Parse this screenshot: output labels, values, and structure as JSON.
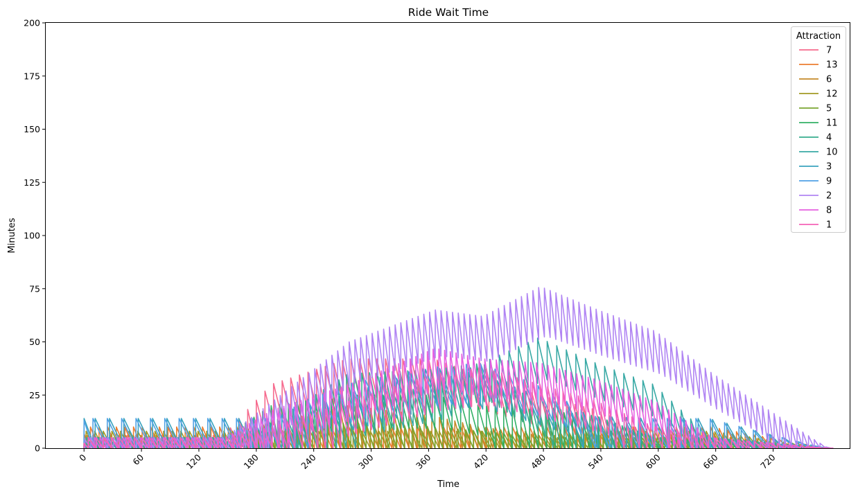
{
  "chart_data": {
    "type": "line",
    "title": "Ride Wait Time",
    "xlabel": "Time",
    "ylabel": "Minutes",
    "xlim": [
      -40,
      800
    ],
    "ylim": [
      0,
      200
    ],
    "x_ticks": [
      0,
      60,
      120,
      180,
      240,
      300,
      360,
      420,
      480,
      540,
      600,
      660,
      720
    ],
    "x_tick_labels": [
      "0",
      "60",
      "120",
      "180",
      "240",
      "300",
      "360",
      "420",
      "480",
      "540",
      "600",
      "660",
      "720"
    ],
    "y_ticks": [
      0,
      25,
      50,
      75,
      100,
      125,
      150,
      175,
      200
    ],
    "y_tick_labels": [
      "0",
      "25",
      "50",
      "75",
      "100",
      "125",
      "150",
      "175",
      "200"
    ],
    "x_tick_rotation": 45,
    "grid": false,
    "legend": {
      "title": "Attraction",
      "placement": "upper-right"
    },
    "series": [
      {
        "name": "7",
        "color": "#f66a8d",
        "period": 9,
        "peak_minutes": [
          0,
          6,
          6,
          30,
          42,
          42,
          34,
          25,
          18,
          6,
          6,
          0
        ]
      },
      {
        "name": "13",
        "color": "#ec7d30",
        "period": 9,
        "peak_minutes": [
          0,
          10,
          10,
          10,
          10,
          10,
          10,
          10,
          10,
          10,
          10,
          0
        ]
      },
      {
        "name": "6",
        "color": "#c48a28",
        "period": 8,
        "peak_minutes": [
          0,
          6,
          6,
          12,
          20,
          15,
          10,
          6,
          6,
          6,
          6,
          0
        ]
      },
      {
        "name": "12",
        "color": "#a39a24",
        "period": 9,
        "peak_minutes": [
          0,
          8,
          8,
          8,
          8,
          8,
          8,
          8,
          8,
          8,
          8,
          0
        ]
      },
      {
        "name": "5",
        "color": "#79a530",
        "period": 8,
        "peak_minutes": [
          0,
          5,
          5,
          8,
          12,
          10,
          8,
          5,
          5,
          5,
          5,
          0
        ]
      },
      {
        "name": "11",
        "color": "#32b065",
        "period": 9,
        "peak_minutes": [
          0,
          5,
          5,
          20,
          25,
          25,
          20,
          18,
          15,
          5,
          5,
          0
        ]
      },
      {
        "name": "4",
        "color": "#36ad8d",
        "period": 8,
        "peak_minutes": [
          0,
          5,
          5,
          12,
          35,
          37,
          40,
          20,
          15,
          5,
          5,
          0
        ]
      },
      {
        "name": "10",
        "color": "#38a9a5",
        "period": 10,
        "peak_minutes": [
          0,
          5,
          5,
          10,
          20,
          30,
          40,
          52,
          40,
          30,
          5,
          0
        ]
      },
      {
        "name": "3",
        "color": "#39a3be",
        "period": 15,
        "peak_minutes": [
          0,
          14,
          14,
          14,
          25,
          38,
          35,
          25,
          15,
          14,
          14,
          0
        ]
      },
      {
        "name": "9",
        "color": "#4fa1e4",
        "period": 15,
        "peak_minutes": [
          0,
          14,
          14,
          14,
          30,
          38,
          40,
          30,
          15,
          14,
          14,
          0
        ]
      },
      {
        "name": "2",
        "color": "#b084f3",
        "period": 6,
        "peak_minutes": [
          0,
          5,
          5,
          22,
          50,
          65,
          62,
          76,
          65,
          55,
          35,
          0
        ]
      },
      {
        "name": "8",
        "color": "#e65fe0",
        "period": 6,
        "peak_minutes": [
          0,
          5,
          5,
          18,
          30,
          47,
          42,
          40,
          32,
          22,
          5,
          0
        ]
      },
      {
        "name": "1",
        "color": "#f462b7",
        "period": 8,
        "peak_minutes": [
          0,
          5,
          5,
          10,
          22,
          35,
          38,
          30,
          22,
          10,
          5,
          0
        ]
      }
    ],
    "peak_minutes_at_time": [
      0,
      5,
      150,
      200,
      280,
      370,
      420,
      480,
      540,
      600,
      660,
      780
    ]
  }
}
